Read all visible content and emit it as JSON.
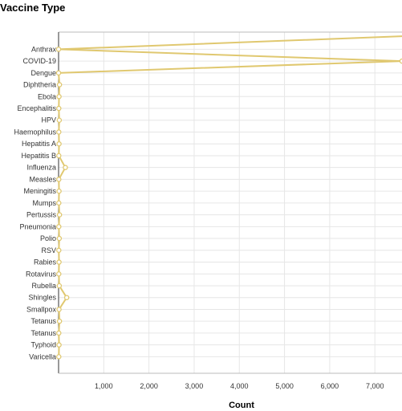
{
  "chart_data": {
    "type": "line",
    "orientation": "horizontal",
    "title": "Vaccine Type",
    "xlabel": "Count",
    "ylabel": "",
    "categories": [
      "Anthrax",
      "COVID-19",
      "Dengue",
      "Diphtheria",
      "Ebola",
      "Encephalitis",
      "HPV",
      "Haemophilus",
      "Hepatitis A",
      "Hepatitis B",
      "Influenza",
      "Measles",
      "Meningitis",
      "Mumps",
      "Pertussis",
      "Pneumonia",
      "Polio",
      "RSV",
      "Rabies",
      "Rotavirus",
      "Rubella",
      "Shingles",
      "Smallpox",
      "Tetanus",
      "Tetanus",
      "Typhoid",
      "Varicella"
    ],
    "values": [
      0,
      7600,
      0,
      20,
      10,
      5,
      15,
      5,
      10,
      5,
      150,
      5,
      10,
      5,
      20,
      5,
      15,
      5,
      10,
      5,
      15,
      180,
      10,
      20,
      5,
      10,
      5
    ],
    "xlim": [
      0,
      7600
    ],
    "xticks": [
      1000,
      2000,
      3000,
      4000,
      5000,
      6000,
      7000
    ],
    "xtick_labels": [
      "1,000",
      "2,000",
      "3,000",
      "4,000",
      "5,000",
      "6,000",
      "7,000"
    ],
    "grid": true,
    "legend": "none",
    "colors": {
      "series": "#e0c870",
      "marker_fill": "#ffffff",
      "grid": "#e6e6e6",
      "axis": "#333333"
    }
  }
}
